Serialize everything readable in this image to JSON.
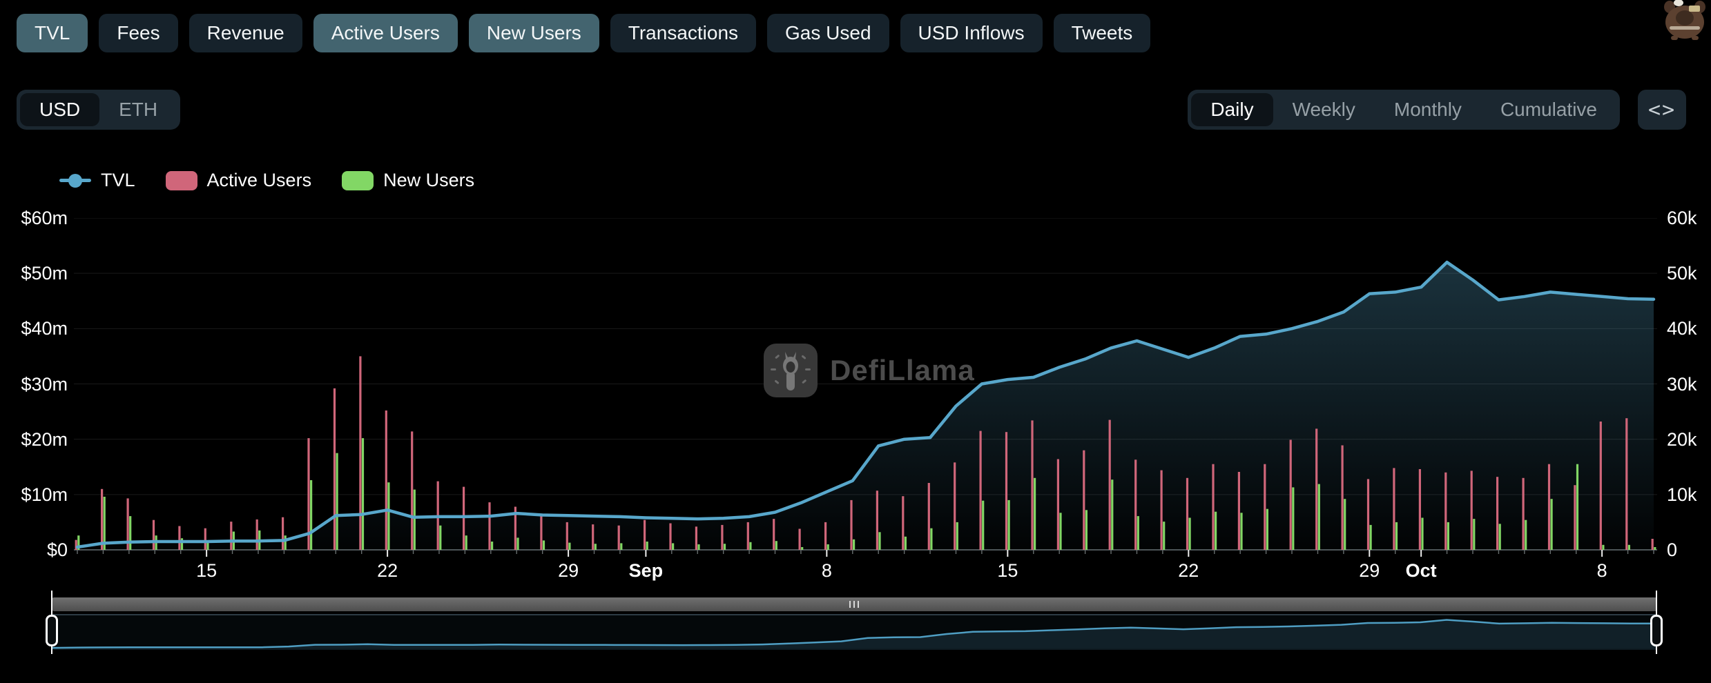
{
  "metric_buttons": [
    {
      "label": "TVL",
      "active": true
    },
    {
      "label": "Fees",
      "active": false
    },
    {
      "label": "Revenue",
      "active": false
    },
    {
      "label": "Active Users",
      "active": true
    },
    {
      "label": "New Users",
      "active": true
    },
    {
      "label": "Transactions",
      "active": false
    },
    {
      "label": "Gas Used",
      "active": false
    },
    {
      "label": "USD Inflows",
      "active": false
    },
    {
      "label": "Tweets",
      "active": false
    }
  ],
  "denom_toggle": {
    "options": [
      "USD",
      "ETH"
    ],
    "selected": "USD"
  },
  "freq_tabs": {
    "options": [
      "Daily",
      "Weekly",
      "Monthly",
      "Cumulative"
    ],
    "selected": "Daily"
  },
  "embed_button": {
    "icon": "code-icon",
    "glyph": "<>"
  },
  "legend": [
    {
      "label": "TVL",
      "type": "line",
      "color": "#58a7cb"
    },
    {
      "label": "Active Users",
      "type": "bar",
      "color": "#d0667a"
    },
    {
      "label": "New Users",
      "type": "bar",
      "color": "#82d765"
    }
  ],
  "watermark": {
    "text": "DefiLlama"
  },
  "colors": {
    "background": "#000000",
    "active_button_bg": "#43646f",
    "inactive_button_bg": "#16222b",
    "gridline": "rgba(255,255,255,0.10)",
    "baseline": "#4d5457"
  },
  "chart_data": {
    "type": "mixed",
    "grid": true,
    "legend_position": "top-left",
    "x": [
      "Aug 10",
      "Aug 11",
      "Aug 12",
      "Aug 13",
      "Aug 14",
      "Aug 15",
      "Aug 16",
      "Aug 17",
      "Aug 18",
      "Aug 19",
      "Aug 20",
      "Aug 21",
      "Aug 22",
      "Aug 23",
      "Aug 24",
      "Aug 25",
      "Aug 26",
      "Aug 27",
      "Aug 28",
      "Aug 29",
      "Aug 30",
      "Aug 31",
      "Sep 1",
      "Sep 2",
      "Sep 3",
      "Sep 4",
      "Sep 5",
      "Sep 6",
      "Sep 7",
      "Sep 8",
      "Sep 9",
      "Sep 10",
      "Sep 11",
      "Sep 12",
      "Sep 13",
      "Sep 14",
      "Sep 15",
      "Sep 16",
      "Sep 17",
      "Sep 18",
      "Sep 19",
      "Sep 20",
      "Sep 21",
      "Sep 22",
      "Sep 23",
      "Sep 24",
      "Sep 25",
      "Sep 26",
      "Sep 27",
      "Sep 28",
      "Sep 29",
      "Sep 30",
      "Oct 1",
      "Oct 2",
      "Oct 3",
      "Oct 4",
      "Oct 5",
      "Oct 6",
      "Oct 7",
      "Oct 8",
      "Oct 9",
      "Oct 10"
    ],
    "series": [
      {
        "name": "TVL",
        "type": "line",
        "axis": "left",
        "unit": "USD millions",
        "color": "#58a7cb",
        "values": [
          0.5,
          1.2,
          1.4,
          1.5,
          1.5,
          1.5,
          1.6,
          1.6,
          1.7,
          3.0,
          6.2,
          6.4,
          7.2,
          5.9,
          6.0,
          6.0,
          6.1,
          6.6,
          6.3,
          6.2,
          6.1,
          6.0,
          5.8,
          5.7,
          5.6,
          5.7,
          6.0,
          6.8,
          8.5,
          10.5,
          12.5,
          18.8,
          20.0,
          20.3,
          26.0,
          30.0,
          30.8,
          31.2,
          33.0,
          34.5,
          36.5,
          37.8,
          36.3,
          34.8,
          36.5,
          38.6,
          39.0,
          40.0,
          41.3,
          43.0,
          46.3,
          46.6,
          47.5,
          52.0,
          48.8,
          45.2,
          45.8,
          46.6,
          46.2,
          45.8,
          45.4,
          45.3
        ]
      },
      {
        "name": "Active Users",
        "type": "bar",
        "axis": "right",
        "unit": "thousands",
        "color": "#d0667a",
        "values": [
          1.8,
          11.0,
          9.3,
          5.4,
          4.3,
          3.9,
          5.1,
          5.5,
          5.9,
          20.2,
          29.2,
          35.0,
          25.2,
          21.4,
          12.4,
          11.4,
          8.6,
          7.8,
          6.2,
          5.0,
          4.6,
          4.4,
          5.4,
          4.8,
          4.2,
          4.5,
          5.0,
          5.6,
          3.8,
          5.0,
          9.0,
          10.7,
          9.7,
          12.1,
          15.8,
          21.5,
          21.3,
          23.4,
          16.4,
          18.0,
          23.5,
          16.3,
          14.4,
          13.0,
          15.5,
          14.1,
          15.5,
          19.9,
          21.9,
          18.9,
          12.8,
          14.8,
          14.6,
          14.0,
          14.3,
          13.2,
          13.0,
          15.5,
          11.7,
          23.2,
          23.8,
          2.0
        ]
      },
      {
        "name": "New Users",
        "type": "bar",
        "axis": "right",
        "unit": "thousands",
        "color": "#82d765",
        "values": [
          2.6,
          9.6,
          6.1,
          2.6,
          2.1,
          1.7,
          3.3,
          3.5,
          2.6,
          12.6,
          17.5,
          20.2,
          12.2,
          10.9,
          4.4,
          2.6,
          1.5,
          2.2,
          1.7,
          1.3,
          1.1,
          1.2,
          1.5,
          1.2,
          1.0,
          1.1,
          1.4,
          1.6,
          0.5,
          1.0,
          1.9,
          3.2,
          2.4,
          3.9,
          5.0,
          8.9,
          9.0,
          13.0,
          6.7,
          7.2,
          12.7,
          6.1,
          5.1,
          5.8,
          6.9,
          6.7,
          7.4,
          11.3,
          11.9,
          9.2,
          4.5,
          5.0,
          5.8,
          5.0,
          5.6,
          4.7,
          5.4,
          9.2,
          15.5,
          0.9,
          0.9,
          0.5
        ]
      }
    ],
    "left_axis": {
      "ticks": [
        "$0",
        "$10m",
        "$20m",
        "$30m",
        "$40m",
        "$50m",
        "$60m"
      ],
      "range": [
        0,
        60
      ]
    },
    "right_axis": {
      "ticks": [
        "0",
        "10k",
        "20k",
        "30k",
        "40k",
        "50k",
        "60k"
      ],
      "range": [
        0,
        60
      ]
    },
    "x_tick_labels": [
      {
        "index": 5,
        "label": "15",
        "bold": false
      },
      {
        "index": 12,
        "label": "22",
        "bold": false
      },
      {
        "index": 19,
        "label": "29",
        "bold": false
      },
      {
        "index": 22,
        "label": "Sep",
        "bold": true
      },
      {
        "index": 29,
        "label": "8",
        "bold": false
      },
      {
        "index": 36,
        "label": "15",
        "bold": false
      },
      {
        "index": 43,
        "label": "22",
        "bold": false
      },
      {
        "index": 50,
        "label": "29",
        "bold": false
      },
      {
        "index": 52,
        "label": "Oct",
        "bold": true
      },
      {
        "index": 59,
        "label": "8",
        "bold": false
      }
    ]
  }
}
